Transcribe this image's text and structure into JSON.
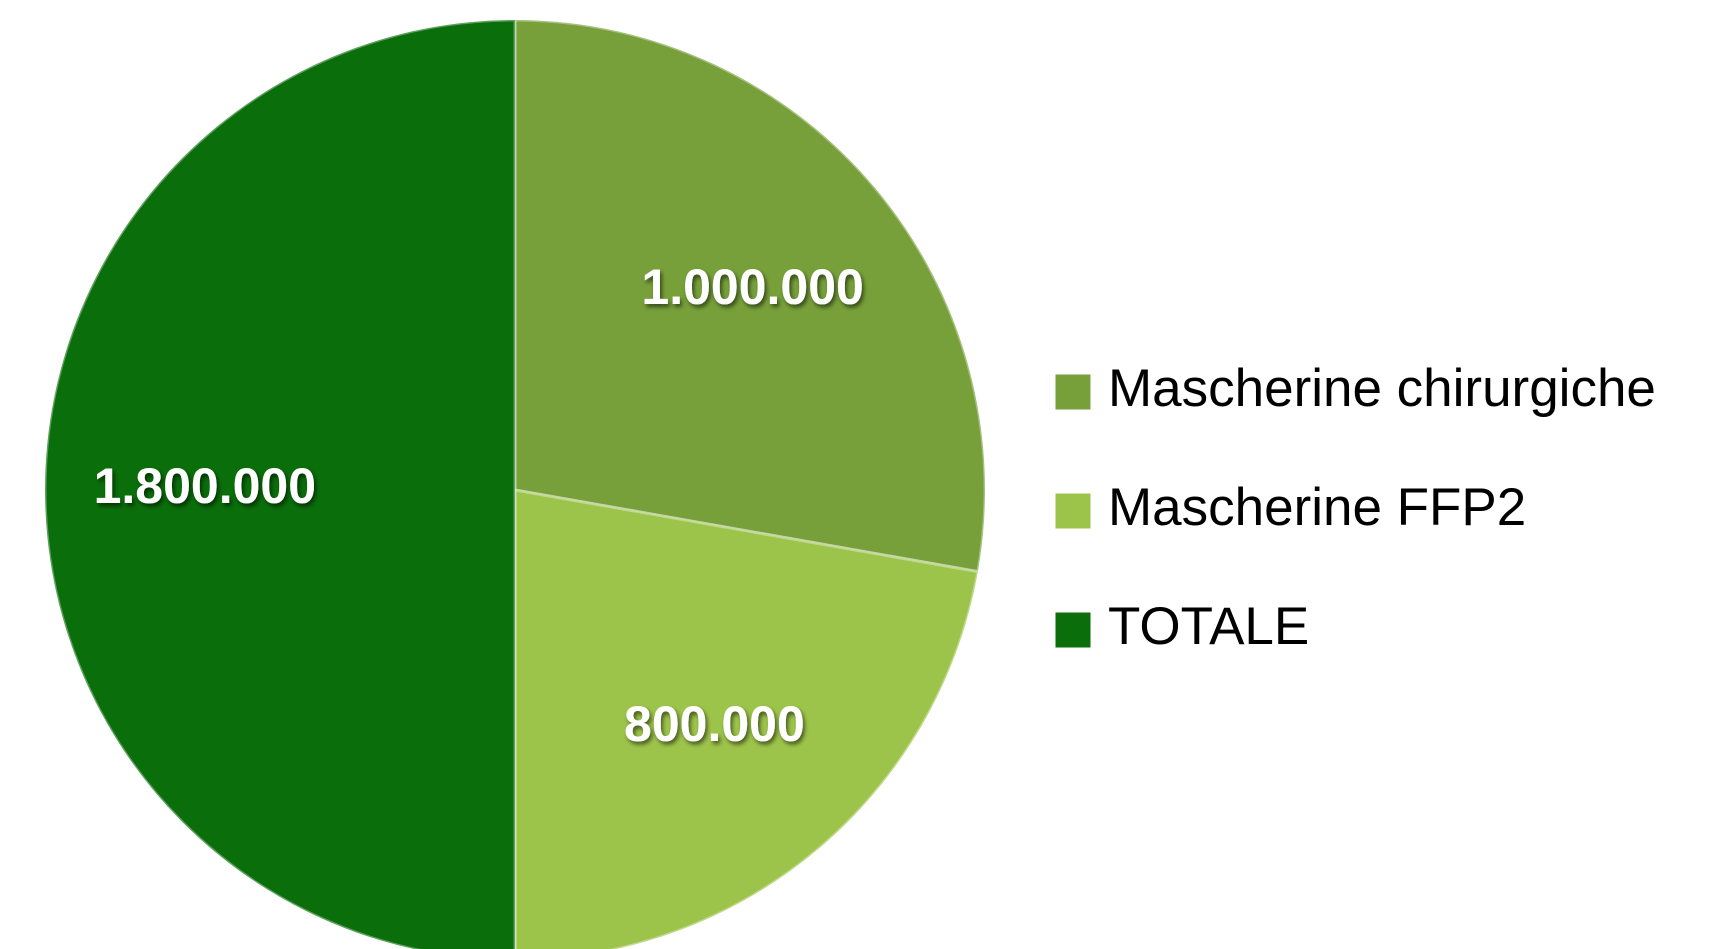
{
  "chart_data": {
    "type": "pie",
    "categories": [
      "Mascherine chirurgiche",
      "Mascherine FFP2",
      "TOTALE"
    ],
    "values": [
      1000000,
      800000,
      1800000
    ],
    "value_labels": [
      "1.000.000",
      "800.000",
      "1.800.000"
    ],
    "colors": [
      "#77a03a",
      "#9dc44a",
      "#0a6e0a"
    ],
    "legend": "right"
  }
}
